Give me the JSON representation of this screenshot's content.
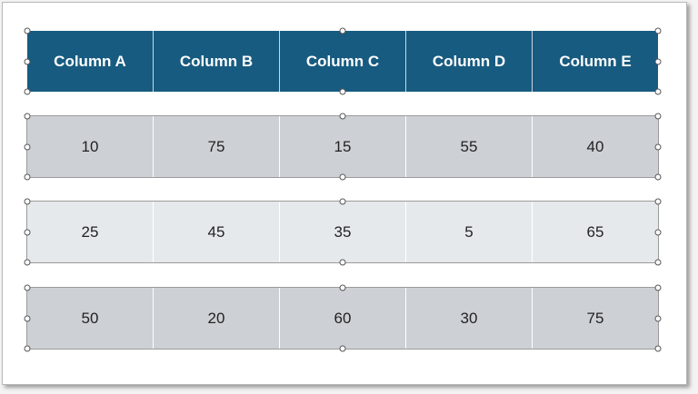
{
  "table": {
    "header": [
      "Column A",
      "Column B",
      "Column C",
      "Column D",
      "Column E"
    ],
    "rows": [
      [
        10,
        75,
        15,
        55,
        40
      ],
      [
        25,
        45,
        35,
        5,
        65
      ],
      [
        50,
        20,
        60,
        30,
        75
      ]
    ]
  }
}
